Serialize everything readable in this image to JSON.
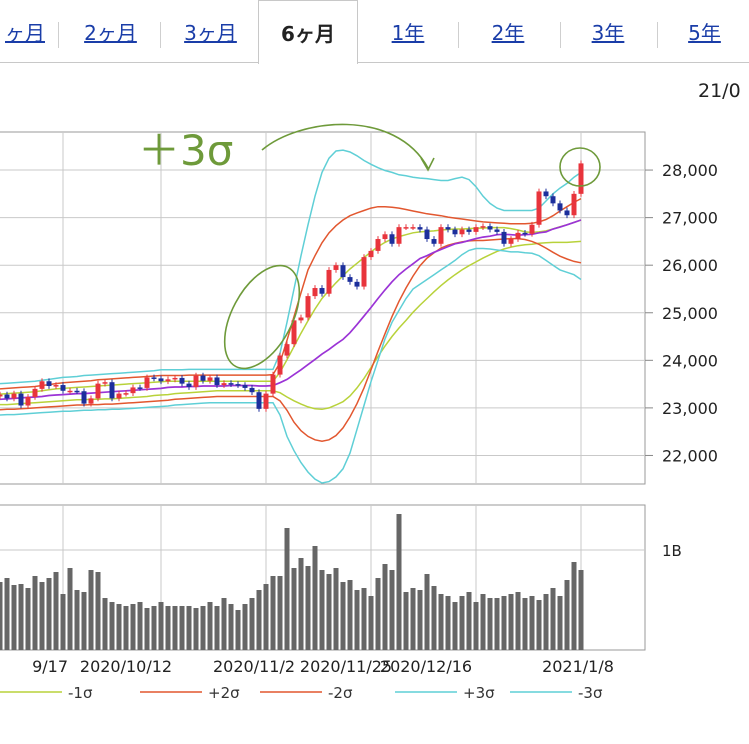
{
  "tabs": [
    {
      "label": "ヶ月",
      "active": false
    },
    {
      "label": "2ヶ月",
      "active": false
    },
    {
      "label": "3ヶ月",
      "active": false
    },
    {
      "label": "6ヶ月",
      "active": true
    },
    {
      "label": "1年",
      "active": false
    },
    {
      "label": "2年",
      "active": false
    },
    {
      "label": "3年",
      "active": false
    },
    {
      "label": "5年",
      "active": false
    }
  ],
  "header_date": "21/0",
  "annotation": "＋3σ",
  "colors": {
    "up_candle": "#e8343c",
    "down_candle": "#1c2f9c",
    "ma": "#9b33d6",
    "band1": "#b8d23a",
    "band2": "#e2572f",
    "band3": "#5fcfd6",
    "volume": "#666666",
    "annotation": "#6e9a3a"
  },
  "chart_data": {
    "type": "candlestick",
    "x_tick_labels": [
      "9/17",
      "2020/10/12",
      "2020/11/2",
      "2020/11/25",
      "2020/12/16",
      "2021/1/8"
    ],
    "y_tick_labels": [
      "28,000",
      "27,000",
      "26,000",
      "25,000",
      "24,000",
      "23,000",
      "22,000"
    ],
    "ylim": [
      21400,
      28800
    ],
    "volume_tick_labels": [
      "1B"
    ],
    "volume_ylim": [
      0,
      1.45
    ],
    "x_start": "2020-09-04",
    "dates": [
      "2020-09-04",
      "2020-09-07",
      "2020-09-08",
      "2020-09-09",
      "2020-09-10",
      "2020-09-11",
      "2020-09-14",
      "2020-09-15",
      "2020-09-16",
      "2020-09-17",
      "2020-09-18",
      "2020-09-23",
      "2020-09-24",
      "2020-09-25",
      "2020-09-28",
      "2020-09-29",
      "2020-09-30",
      "2020-10-02",
      "2020-10-05",
      "2020-10-06",
      "2020-10-07",
      "2020-10-08",
      "2020-10-09",
      "2020-10-12",
      "2020-10-13",
      "2020-10-14",
      "2020-10-15",
      "2020-10-16",
      "2020-10-19",
      "2020-10-20",
      "2020-10-21",
      "2020-10-22",
      "2020-10-23",
      "2020-10-26",
      "2020-10-27",
      "2020-10-28",
      "2020-10-29",
      "2020-10-30",
      "2020-11-02",
      "2020-11-04",
      "2020-11-05",
      "2020-11-06",
      "2020-11-09",
      "2020-11-10",
      "2020-11-11",
      "2020-11-12",
      "2020-11-13",
      "2020-11-16",
      "2020-11-17",
      "2020-11-18",
      "2020-11-19",
      "2020-11-20",
      "2020-11-24",
      "2020-11-25",
      "2020-11-26",
      "2020-11-27",
      "2020-11-30",
      "2020-12-01",
      "2020-12-02",
      "2020-12-03",
      "2020-12-04",
      "2020-12-07",
      "2020-12-08",
      "2020-12-09",
      "2020-12-10",
      "2020-12-11",
      "2020-12-14",
      "2020-12-15",
      "2020-12-16",
      "2020-12-17",
      "2020-12-18",
      "2020-12-21",
      "2020-12-22",
      "2020-12-23",
      "2020-12-24",
      "2020-12-25",
      "2020-12-28",
      "2020-12-29",
      "2020-12-30",
      "2021-01-04",
      "2021-01-05",
      "2021-01-06",
      "2021-01-07",
      "2021-01-08"
    ],
    "close": [
      23280,
      23200,
      23300,
      23050,
      23230,
      23400,
      23560,
      23460,
      23480,
      23360,
      23360,
      23350,
      23090,
      23200,
      23510,
      23540,
      23200,
      23300,
      23310,
      23430,
      23420,
      23640,
      23620,
      23560,
      23600,
      23630,
      23510,
      23440,
      23680,
      23570,
      23640,
      23480,
      23520,
      23500,
      23480,
      23420,
      23330,
      22980,
      23300,
      23700,
      24100,
      24340,
      24840,
      24900,
      25350,
      25520,
      25400,
      25900,
      26000,
      25750,
      25650,
      25550,
      26170,
      26300,
      26550,
      26650,
      26450,
      26800,
      26800,
      26800,
      26750,
      26550,
      26450,
      26800,
      26750,
      26650,
      26750,
      26700,
      26800,
      26820,
      26750,
      26700,
      26450,
      26550,
      26680,
      26660,
      26850,
      27550,
      27450,
      27300,
      27150,
      27050,
      27500,
      28140
    ],
    "ma_line": [
      23180,
      23190,
      23200,
      23210,
      23220,
      23230,
      23240,
      23260,
      23270,
      23280,
      23290,
      23300,
      23300,
      23310,
      23320,
      23330,
      23340,
      23350,
      23360,
      23370,
      23380,
      23390,
      23400,
      23410,
      23430,
      23440,
      23440,
      23450,
      23450,
      23460,
      23460,
      23460,
      23460,
      23470,
      23470,
      23470,
      23470,
      23460,
      23460,
      23470,
      23530,
      23600,
      23700,
      23800,
      23910,
      24020,
      24130,
      24230,
      24340,
      24440,
      24580,
      24750,
      24930,
      25110,
      25300,
      25480,
      25650,
      25800,
      25920,
      26030,
      26140,
      26200,
      26270,
      26330,
      26390,
      26450,
      26480,
      26520,
      26560,
      26590,
      26610,
      26640,
      26650,
      26640,
      26630,
      26640,
      26650,
      26680,
      26700,
      26760,
      26800,
      26850,
      26900,
      26950
    ],
    "bands": [
      {
        "name": "+1σ",
        "values": [
          23290,
          23300,
          23310,
          23320,
          23330,
          23340,
          23360,
          23380,
          23400,
          23410,
          23420,
          23430,
          23440,
          23450,
          23460,
          23470,
          23480,
          23490,
          23500,
          23510,
          23520,
          23530,
          23540,
          23550,
          23560,
          23560,
          23560,
          23560,
          23560,
          23560,
          23560,
          23560,
          23560,
          23560,
          23560,
          23560,
          23560,
          23560,
          23560,
          23560,
          23750,
          24010,
          24290,
          24570,
          24830,
          25080,
          25300,
          25470,
          25630,
          25780,
          25920,
          26040,
          26160,
          26280,
          26390,
          26480,
          26550,
          26600,
          26640,
          26680,
          26700,
          26710,
          26720,
          26740,
          26750,
          26760,
          26760,
          26770,
          26780,
          26780,
          26790,
          26790,
          26790,
          26770,
          26740,
          26700,
          26690,
          26700,
          26720,
          26760,
          26810,
          26850,
          26900,
          26950
        ]
      },
      {
        "name": "-1σ",
        "values": [
          23070,
          23070,
          23080,
          23090,
          23100,
          23110,
          23120,
          23130,
          23140,
          23150,
          23160,
          23170,
          23170,
          23180,
          23180,
          23190,
          23190,
          23200,
          23210,
          23220,
          23230,
          23240,
          23260,
          23270,
          23280,
          23300,
          23310,
          23320,
          23330,
          23340,
          23350,
          23360,
          23360,
          23360,
          23360,
          23360,
          23360,
          23360,
          23360,
          23360,
          23320,
          23230,
          23150,
          23080,
          23020,
          22980,
          22970,
          23000,
          23060,
          23130,
          23250,
          23420,
          23620,
          23850,
          24080,
          24300,
          24500,
          24680,
          24840,
          25010,
          25160,
          25300,
          25440,
          25570,
          25690,
          25800,
          25900,
          25990,
          26070,
          26150,
          26220,
          26290,
          26340,
          26380,
          26410,
          26430,
          26440,
          26460,
          26470,
          26480,
          26480,
          26480,
          26490,
          26500
        ]
      },
      {
        "name": "+2σ",
        "values": [
          23400,
          23410,
          23420,
          23430,
          23440,
          23450,
          23470,
          23490,
          23510,
          23530,
          23540,
          23550,
          23560,
          23570,
          23590,
          23600,
          23610,
          23620,
          23630,
          23640,
          23650,
          23660,
          23670,
          23680,
          23680,
          23680,
          23680,
          23690,
          23690,
          23690,
          23690,
          23690,
          23690,
          23690,
          23690,
          23690,
          23690,
          23690,
          23690,
          23700,
          23950,
          24420,
          24920,
          25420,
          25900,
          26200,
          26470,
          26680,
          26830,
          26950,
          27040,
          27100,
          27150,
          27200,
          27230,
          27230,
          27220,
          27200,
          27170,
          27140,
          27110,
          27080,
          27060,
          27040,
          27010,
          26990,
          26970,
          26950,
          26930,
          26910,
          26900,
          26890,
          26880,
          26870,
          26870,
          26870,
          26880,
          26910,
          26960,
          27040,
          27140,
          27230,
          27320,
          27400
        ]
      },
      {
        "name": "-2σ",
        "values": [
          22960,
          22970,
          22970,
          22980,
          22990,
          23000,
          23010,
          23020,
          23030,
          23040,
          23050,
          23060,
          23060,
          23070,
          23070,
          23080,
          23080,
          23090,
          23100,
          23110,
          23120,
          23130,
          23140,
          23150,
          23160,
          23180,
          23190,
          23200,
          23210,
          23220,
          23230,
          23240,
          23240,
          23240,
          23240,
          23240,
          23240,
          23240,
          23240,
          23240,
          23150,
          22950,
          22700,
          22520,
          22400,
          22330,
          22300,
          22330,
          22420,
          22580,
          22810,
          23090,
          23420,
          23800,
          24190,
          24560,
          24920,
          25240,
          25520,
          25770,
          25990,
          26150,
          26260,
          26360,
          26420,
          26460,
          26490,
          26510,
          26520,
          26520,
          26530,
          26540,
          26550,
          26560,
          26560,
          26540,
          26500,
          26440,
          26360,
          26270,
          26190,
          26130,
          26080,
          26050
        ]
      },
      {
        "name": "+3σ",
        "values": [
          23510,
          23520,
          23530,
          23540,
          23550,
          23560,
          23580,
          23600,
          23620,
          23640,
          23650,
          23660,
          23680,
          23690,
          23700,
          23710,
          23720,
          23730,
          23740,
          23750,
          23760,
          23770,
          23780,
          23800,
          23800,
          23800,
          23800,
          23810,
          23810,
          23810,
          23810,
          23810,
          23810,
          23810,
          23810,
          23810,
          23810,
          23810,
          23810,
          23810,
          24150,
          24800,
          25500,
          26200,
          26850,
          27450,
          27950,
          28250,
          28400,
          28420,
          28380,
          28300,
          28200,
          28120,
          28050,
          27990,
          27950,
          27900,
          27880,
          27850,
          27830,
          27820,
          27800,
          27780,
          27780,
          27820,
          27850,
          27800,
          27650,
          27450,
          27300,
          27200,
          27150,
          27150,
          27150,
          27150,
          27150,
          27200,
          27350,
          27500,
          27620,
          27720,
          27850,
          27950
        ]
      },
      {
        "name": "-3σ",
        "values": [
          22850,
          22860,
          22860,
          22870,
          22880,
          22890,
          22900,
          22910,
          22920,
          22930,
          22930,
          22940,
          22950,
          22950,
          22960,
          22960,
          22970,
          22970,
          22980,
          22990,
          23000,
          23010,
          23020,
          23030,
          23040,
          23060,
          23070,
          23080,
          23090,
          23100,
          23110,
          23110,
          23110,
          23110,
          23110,
          23110,
          23110,
          23110,
          23110,
          23110,
          22850,
          22400,
          22100,
          21850,
          21650,
          21500,
          21420,
          21450,
          21550,
          21720,
          22050,
          22550,
          23050,
          23550,
          24000,
          24450,
          24800,
          25050,
          25300,
          25500,
          25600,
          25700,
          25800,
          25900,
          26000,
          26100,
          26220,
          26310,
          26350,
          26350,
          26340,
          26320,
          26300,
          26280,
          26280,
          26260,
          26250,
          26200,
          26100,
          26000,
          25900,
          25850,
          25800,
          25700
        ]
      }
    ],
    "volume": [
      0.68,
      0.72,
      0.65,
      0.66,
      0.62,
      0.74,
      0.68,
      0.72,
      0.78,
      0.56,
      0.82,
      0.6,
      0.58,
      0.8,
      0.78,
      0.52,
      0.48,
      0.46,
      0.44,
      0.46,
      0.48,
      0.42,
      0.44,
      0.48,
      0.44,
      0.44,
      0.44,
      0.44,
      0.42,
      0.44,
      0.48,
      0.44,
      0.52,
      0.46,
      0.4,
      0.46,
      0.52,
      0.6,
      0.66,
      0.74,
      0.74,
      1.22,
      0.82,
      0.92,
      0.84,
      1.04,
      0.8,
      0.76,
      0.82,
      0.68,
      0.7,
      0.6,
      0.62,
      0.54,
      0.72,
      0.86,
      0.8,
      1.36,
      0.58,
      0.62,
      0.6,
      0.76,
      0.64,
      0.56,
      0.54,
      0.48,
      0.54,
      0.58,
      0.48,
      0.56,
      0.52,
      0.52,
      0.54,
      0.56,
      0.58,
      0.52,
      0.54,
      0.5,
      0.56,
      0.62,
      0.54,
      0.7,
      0.88,
      0.8
    ],
    "legend": [
      {
        "label": "-1σ",
        "color": "#b8d23a"
      },
      {
        "label": "+2σ",
        "color": "#e2572f"
      },
      {
        "label": "-2σ",
        "color": "#e2572f"
      },
      {
        "label": "+3σ",
        "color": "#5fcfd6"
      },
      {
        "label": "-3σ",
        "color": "#5fcfd6"
      }
    ]
  }
}
